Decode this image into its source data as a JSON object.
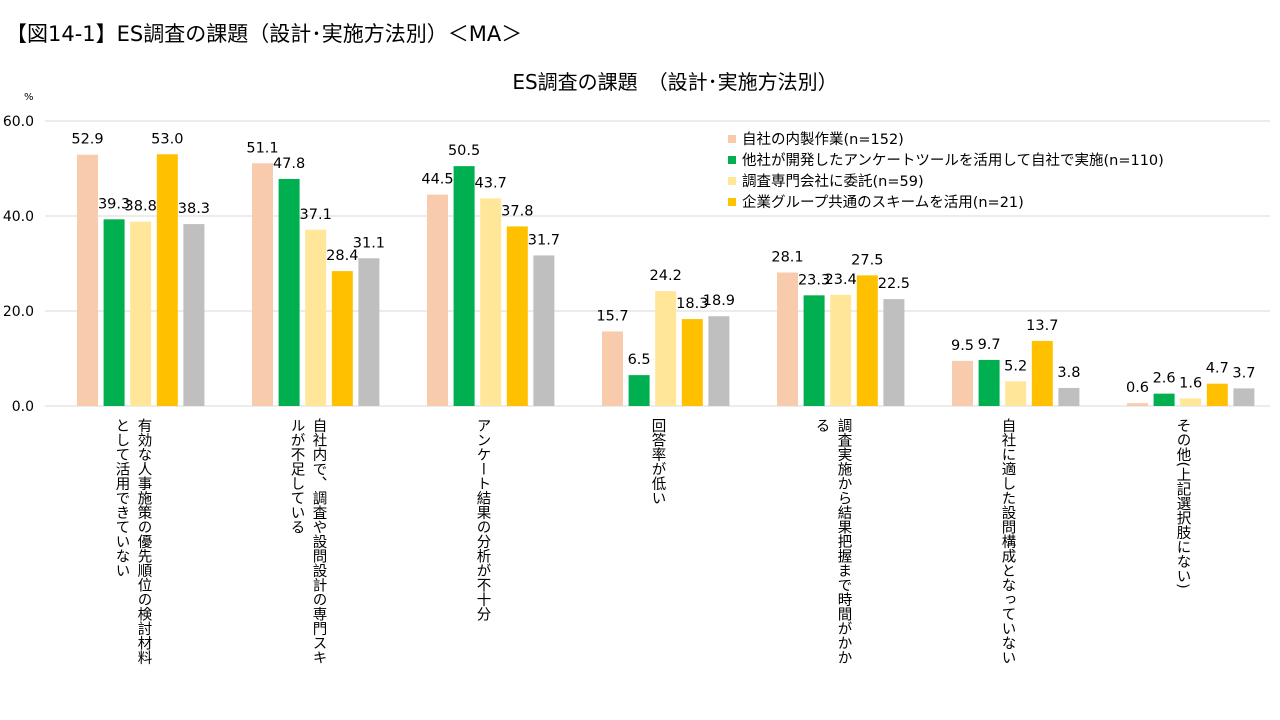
{
  "figure_heading": "【図14-1】ES調査の課題（設計･実施方法別）＜MA＞",
  "colors": {
    "series": [
      "#f8cbad",
      "#00b050",
      "#ffe699",
      "#ffc000",
      "#bfbfbf"
    ],
    "grid": "#d9d9d9",
    "axis": "#d9d9d9"
  },
  "chart_data": {
    "type": "bar",
    "title": "ES調査の課題　（設計･実施方法別）",
    "ylabel": "%",
    "ylim": [
      0,
      60
    ],
    "yticks": [
      "0.0",
      "20.0",
      "40.0",
      "60.0"
    ],
    "grid": true,
    "legend_position": "top-right",
    "categories": [
      [
        "有効な人事施策の優先順位の検討材料",
        "として活用できていない"
      ],
      [
        "自社内で、調査や設問設計の専門スキ",
        "ルが不足している"
      ],
      [
        "アンケート結果の分析が不十分"
      ],
      [
        "回答率が低い"
      ],
      [
        "調査実施から結果把握まで時間がかか",
        "る"
      ],
      [
        "自社に適した設問構成となっていない"
      ],
      [
        "その他(上記選択肢にない)"
      ]
    ],
    "series": [
      {
        "name": "自社の内製作業(n=152)",
        "values": [
          52.9,
          51.1,
          44.5,
          15.7,
          28.1,
          9.5,
          0.6
        ],
        "labels": [
          "52.9",
          "51.1",
          "44.5",
          "15.7",
          "28.1",
          "9.5",
          "0.6"
        ]
      },
      {
        "name": "他社が開発したアンケートツールを活用して自社で実施(n=110)",
        "values": [
          39.3,
          47.8,
          50.5,
          6.5,
          23.3,
          9.7,
          2.6
        ],
        "labels": [
          "39.3",
          "47.8",
          "50.5",
          "6.5",
          "23.3",
          "9.7",
          "2.6"
        ]
      },
      {
        "name": "調査専門会社に委託(n=59)",
        "values": [
          38.8,
          37.1,
          43.7,
          24.2,
          23.4,
          5.2,
          1.6
        ],
        "labels": [
          "38.8",
          "37.1",
          "43.7",
          "24.2",
          "23.4",
          "5.2",
          "1.6"
        ]
      },
      {
        "name": "企業グループ共通のスキームを活用(n=21)",
        "values": [
          53.0,
          28.4,
          37.8,
          18.3,
          27.5,
          13.7,
          4.7
        ],
        "labels": [
          "53.0",
          "28.4",
          "37.8",
          "18.3",
          "27.5",
          "13.7",
          "4.7"
        ]
      },
      {
        "name": "",
        "values": [
          38.3,
          31.1,
          31.7,
          18.9,
          22.5,
          3.8,
          3.7
        ],
        "labels": [
          "38.3",
          "31.1",
          "31.7",
          "18.9",
          "22.5",
          "3.8",
          "3.7"
        ]
      }
    ]
  }
}
